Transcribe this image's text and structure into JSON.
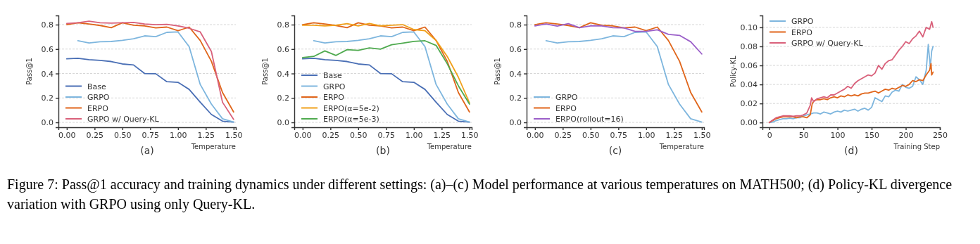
{
  "chart_data": [
    {
      "type": "line",
      "xlabel": "Temperature",
      "ylabel": "Pass@1",
      "annotations": [
        "(a)",
        "Figure 7: Pass@1 accuracy and training dynamics under different settings: (a)–(c) Model performance at various temperatures on MATH500; (d) Policy-KL divergence variation with GRPO using only Query-KL."
      ],
      "x": [
        0,
        0.1,
        0.2,
        0.3,
        0.4,
        0.5,
        0.6,
        0.7,
        0.8,
        0.9,
        1.0,
        1.1,
        1.2,
        1.3,
        1.4,
        1.5
      ],
      "xlim": [
        -0.075,
        1.52
      ],
      "ylim": [
        -0.04,
        0.875
      ],
      "xticks": [
        {
          "value": 0,
          "label": "0.00"
        },
        {
          "value": 0.25,
          "label": "0.25"
        },
        {
          "value": 0.5,
          "label": "0.50"
        },
        {
          "value": 0.75,
          "label": "0.75"
        },
        {
          "value": 1,
          "label": "1.00"
        },
        {
          "value": 1.25,
          "label": "1.25"
        },
        {
          "value": 1.5,
          "label": "1.50"
        }
      ],
      "yticks": [
        {
          "value": 0,
          "label": "0.0"
        },
        {
          "value": 0.2,
          "label": "0.2"
        },
        {
          "value": 0.4,
          "label": "0.4"
        },
        {
          "value": 0.6,
          "label": "0.6"
        },
        {
          "value": 0.8,
          "label": "0.8"
        }
      ],
      "grid": "y",
      "legend": "bottom left",
      "line_style": "solid",
      "marker": "none",
      "series": [
        {
          "name": "Base",
          "color": "#4a6fb5",
          "values": [
            0.52,
            0.525,
            0.513,
            0.508,
            0.498,
            0.478,
            0.47,
            0.4,
            0.398,
            0.333,
            0.328,
            0.27,
            0.165,
            0.065,
            0.01,
            0.003
          ]
        },
        {
          "name": "GRPO",
          "color": "#7eb6de",
          "x": [
            0.1,
            0.2,
            0.3,
            0.4,
            0.5,
            0.6,
            0.7,
            0.8,
            0.9,
            1.0,
            1.1,
            1.2,
            1.3,
            1.4,
            1.5
          ],
          "values": [
            0.668,
            0.65,
            0.66,
            0.662,
            0.672,
            0.685,
            0.708,
            0.702,
            0.737,
            0.74,
            0.62,
            0.31,
            0.15,
            0.03,
            0.003
          ]
        },
        {
          "name": "ERPO",
          "color": "#e0651a",
          "values": [
            0.8,
            0.815,
            0.805,
            0.793,
            0.775,
            0.815,
            0.795,
            0.79,
            0.773,
            0.78,
            0.75,
            0.78,
            0.67,
            0.5,
            0.245,
            0.085
          ]
        },
        {
          "name": "GRPO w/ Query-KL",
          "color": "#d9607a",
          "values": [
            0.81,
            0.815,
            0.828,
            0.815,
            0.812,
            0.815,
            0.818,
            0.805,
            0.8,
            0.802,
            0.79,
            0.77,
            0.74,
            0.58,
            0.165,
            0.025
          ]
        }
      ]
    },
    {
      "type": "line",
      "xlabel": "Temperature",
      "ylabel": "Pass@1",
      "annotations": [
        "(b)"
      ],
      "x": [
        0,
        0.1,
        0.2,
        0.3,
        0.4,
        0.5,
        0.6,
        0.7,
        0.8,
        0.9,
        1.0,
        1.1,
        1.2,
        1.3,
        1.4,
        1.5
      ],
      "xlim": [
        -0.075,
        1.52
      ],
      "ylim": [
        -0.04,
        0.875
      ],
      "xticks": [
        {
          "value": 0,
          "label": "0.00"
        },
        {
          "value": 0.25,
          "label": "0.25"
        },
        {
          "value": 0.5,
          "label": "0.50"
        },
        {
          "value": 0.75,
          "label": "0.75"
        },
        {
          "value": 1,
          "label": "1.00"
        },
        {
          "value": 1.25,
          "label": "1.25"
        },
        {
          "value": 1.5,
          "label": "1.50"
        }
      ],
      "yticks": [
        {
          "value": 0,
          "label": "0.0"
        },
        {
          "value": 0.2,
          "label": "0.2"
        },
        {
          "value": 0.4,
          "label": "0.4"
        },
        {
          "value": 0.6,
          "label": "0.6"
        },
        {
          "value": 0.8,
          "label": "0.8"
        }
      ],
      "grid": "y",
      "legend": "bottom left",
      "line_style": "solid",
      "marker": "none",
      "series": [
        {
          "name": "Base",
          "color": "#4a6fb5",
          "values": [
            0.52,
            0.525,
            0.513,
            0.508,
            0.498,
            0.478,
            0.47,
            0.4,
            0.398,
            0.333,
            0.328,
            0.27,
            0.165,
            0.065,
            0.01,
            0.003
          ]
        },
        {
          "name": "GRPO",
          "color": "#7eb6de",
          "x": [
            0.1,
            0.2,
            0.3,
            0.4,
            0.5,
            0.6,
            0.7,
            0.8,
            0.9,
            1.0,
            1.1,
            1.2,
            1.3,
            1.4,
            1.5
          ],
          "values": [
            0.668,
            0.65,
            0.66,
            0.662,
            0.672,
            0.685,
            0.708,
            0.702,
            0.737,
            0.74,
            0.62,
            0.31,
            0.15,
            0.03,
            0.003
          ]
        },
        {
          "name": "ERPO",
          "color": "#e0651a",
          "values": [
            0.8,
            0.815,
            0.805,
            0.793,
            0.775,
            0.815,
            0.795,
            0.79,
            0.773,
            0.78,
            0.75,
            0.78,
            0.67,
            0.5,
            0.245,
            0.085
          ]
        },
        {
          "name": "ERPO(α=5e-2)",
          "color": "#f0a01a",
          "values": [
            0.795,
            0.795,
            0.79,
            0.795,
            0.808,
            0.79,
            0.81,
            0.79,
            0.795,
            0.8,
            0.76,
            0.75,
            0.67,
            0.54,
            0.37,
            0.16
          ]
        },
        {
          "name": "ERPO(α=5e-3)",
          "color": "#4faa4f",
          "values": [
            0.53,
            0.54,
            0.585,
            0.548,
            0.595,
            0.59,
            0.61,
            0.6,
            0.635,
            0.648,
            0.663,
            0.668,
            0.63,
            0.48,
            0.3,
            0.15
          ]
        }
      ]
    },
    {
      "type": "line",
      "xlabel": "Temperature",
      "ylabel": "Pass@1",
      "annotations": [
        "(c)"
      ],
      "x": [
        0,
        0.1,
        0.2,
        0.3,
        0.4,
        0.5,
        0.6,
        0.7,
        0.8,
        0.9,
        1.0,
        1.1,
        1.2,
        1.3,
        1.4,
        1.5
      ],
      "xlim": [
        -0.075,
        1.52
      ],
      "ylim": [
        -0.04,
        0.875
      ],
      "xticks": [
        {
          "value": 0,
          "label": "0.00"
        },
        {
          "value": 0.25,
          "label": "0.25"
        },
        {
          "value": 0.5,
          "label": "0.50"
        },
        {
          "value": 0.75,
          "label": "0.75"
        },
        {
          "value": 1,
          "label": "1.00"
        },
        {
          "value": 1.25,
          "label": "1.25"
        },
        {
          "value": 1.5,
          "label": "1.50"
        }
      ],
      "yticks": [
        {
          "value": 0,
          "label": "0.0"
        },
        {
          "value": 0.2,
          "label": "0.2"
        },
        {
          "value": 0.4,
          "label": "0.4"
        },
        {
          "value": 0.6,
          "label": "0.6"
        },
        {
          "value": 0.8,
          "label": "0.8"
        }
      ],
      "grid": "y",
      "legend": "bottom left",
      "line_style": "solid",
      "marker": "none",
      "series": [
        {
          "name": "GRPO",
          "color": "#7eb6de",
          "x": [
            0.1,
            0.2,
            0.3,
            0.4,
            0.5,
            0.6,
            0.7,
            0.8,
            0.9,
            1.0,
            1.1,
            1.2,
            1.3,
            1.4,
            1.5
          ],
          "values": [
            0.668,
            0.65,
            0.66,
            0.662,
            0.672,
            0.685,
            0.708,
            0.702,
            0.737,
            0.74,
            0.62,
            0.31,
            0.15,
            0.03,
            0.003
          ]
        },
        {
          "name": "ERPO",
          "color": "#e0651a",
          "values": [
            0.8,
            0.815,
            0.805,
            0.793,
            0.775,
            0.815,
            0.795,
            0.79,
            0.773,
            0.78,
            0.75,
            0.78,
            0.67,
            0.5,
            0.245,
            0.085
          ]
        },
        {
          "name": "ERPO(rollout=16)",
          "color": "#9b5fc9",
          "values": [
            0.79,
            0.805,
            0.788,
            0.808,
            0.775,
            0.79,
            0.79,
            0.775,
            0.773,
            0.745,
            0.745,
            0.758,
            0.72,
            0.712,
            0.66,
            0.56
          ]
        }
      ]
    },
    {
      "type": "line",
      "xlabel": "Training Step",
      "ylabel": "Policy-KL",
      "annotations": [
        "(d)"
      ],
      "xlim": [
        -10,
        250
      ],
      "ylim": [
        -0.005,
        0.1125
      ],
      "xticks": [
        0,
        50,
        100,
        150,
        200,
        250
      ],
      "yticks": [
        {
          "value": 0,
          "label": "0.00"
        },
        {
          "value": 0.02,
          "label": "0.02"
        },
        {
          "value": 0.04,
          "label": "0.04"
        },
        {
          "value": 0.06,
          "label": "0.06"
        },
        {
          "value": 0.08,
          "label": "0.08"
        },
        {
          "value": 0.1,
          "label": "0.10"
        }
      ],
      "grid": "y",
      "legend": "top left",
      "line_style": "solid",
      "marker": "none",
      "series": [
        {
          "name": "GRPO",
          "color": "#7eb6de",
          "x": [
            0,
            5,
            10,
            15,
            20,
            25,
            30,
            35,
            40,
            45,
            50,
            55,
            60,
            65,
            70,
            75,
            80,
            85,
            90,
            95,
            100,
            105,
            110,
            115,
            120,
            125,
            130,
            135,
            140,
            145,
            150,
            155,
            160,
            165,
            170,
            175,
            180,
            185,
            190,
            195,
            200,
            205,
            210,
            215,
            220,
            225,
            230,
            233,
            236,
            238,
            240
          ],
          "values": [
            0,
            0.0005,
            0.002,
            0.003,
            0.004,
            0.004,
            0.0045,
            0.004,
            0.005,
            0.005,
            0.007,
            0.008,
            0.009,
            0.01,
            0.01,
            0.009,
            0.011,
            0.01,
            0.009,
            0.011,
            0.012,
            0.011,
            0.013,
            0.012,
            0.013,
            0.014,
            0.012,
            0.014,
            0.015,
            0.013,
            0.016,
            0.026,
            0.024,
            0.022,
            0.028,
            0.027,
            0.032,
            0.034,
            0.033,
            0.04,
            0.037,
            0.036,
            0.038,
            0.048,
            0.045,
            0.04,
            0.055,
            0.082,
            0.058,
            0.075,
            0.08
          ]
        },
        {
          "name": "ERPO",
          "color": "#e0651a",
          "x": [
            0,
            5,
            10,
            15,
            20,
            25,
            30,
            35,
            40,
            45,
            50,
            55,
            60,
            63,
            66,
            70,
            75,
            80,
            85,
            90,
            95,
            100,
            105,
            110,
            115,
            120,
            125,
            130,
            135,
            140,
            145,
            150,
            155,
            160,
            165,
            170,
            175,
            180,
            185,
            190,
            195,
            200,
            205,
            210,
            215,
            220,
            225,
            230,
            235,
            237,
            238,
            240
          ],
          "values": [
            0,
            0.002,
            0.004,
            0.005,
            0.006,
            0.006,
            0.006,
            0.006,
            0.005,
            0.006,
            0.006,
            0.005,
            0.008,
            0.02,
            0.023,
            0.024,
            0.024,
            0.025,
            0.024,
            0.026,
            0.027,
            0.026,
            0.028,
            0.027,
            0.029,
            0.028,
            0.029,
            0.028,
            0.03,
            0.031,
            0.031,
            0.032,
            0.033,
            0.031,
            0.033,
            0.035,
            0.034,
            0.036,
            0.035,
            0.037,
            0.039,
            0.038,
            0.04,
            0.044,
            0.043,
            0.045,
            0.044,
            0.05,
            0.055,
            0.062,
            0.05,
            0.053
          ]
        },
        {
          "name": "GRPO w/ Query-KL",
          "color": "#d9607a",
          "x": [
            0,
            5,
            10,
            15,
            20,
            25,
            30,
            35,
            40,
            45,
            50,
            55,
            60,
            62,
            65,
            70,
            75,
            80,
            85,
            90,
            95,
            100,
            105,
            110,
            115,
            120,
            125,
            130,
            135,
            140,
            145,
            150,
            155,
            160,
            165,
            170,
            175,
            180,
            185,
            190,
            195,
            200,
            205,
            210,
            215,
            220,
            225,
            230,
            235,
            238,
            240
          ],
          "values": [
            0,
            0.0025,
            0.005,
            0.006,
            0.007,
            0.007,
            0.007,
            0.0065,
            0.007,
            0.007,
            0.008,
            0.01,
            0.018,
            0.026,
            0.022,
            0.025,
            0.026,
            0.027,
            0.026,
            0.029,
            0.029,
            0.031,
            0.033,
            0.035,
            0.038,
            0.036,
            0.041,
            0.044,
            0.046,
            0.048,
            0.05,
            0.049,
            0.052,
            0.06,
            0.056,
            0.062,
            0.065,
            0.066,
            0.071,
            0.076,
            0.08,
            0.085,
            0.083,
            0.088,
            0.091,
            0.096,
            0.09,
            0.1,
            0.098,
            0.106,
            0.1
          ]
        }
      ]
    }
  ]
}
